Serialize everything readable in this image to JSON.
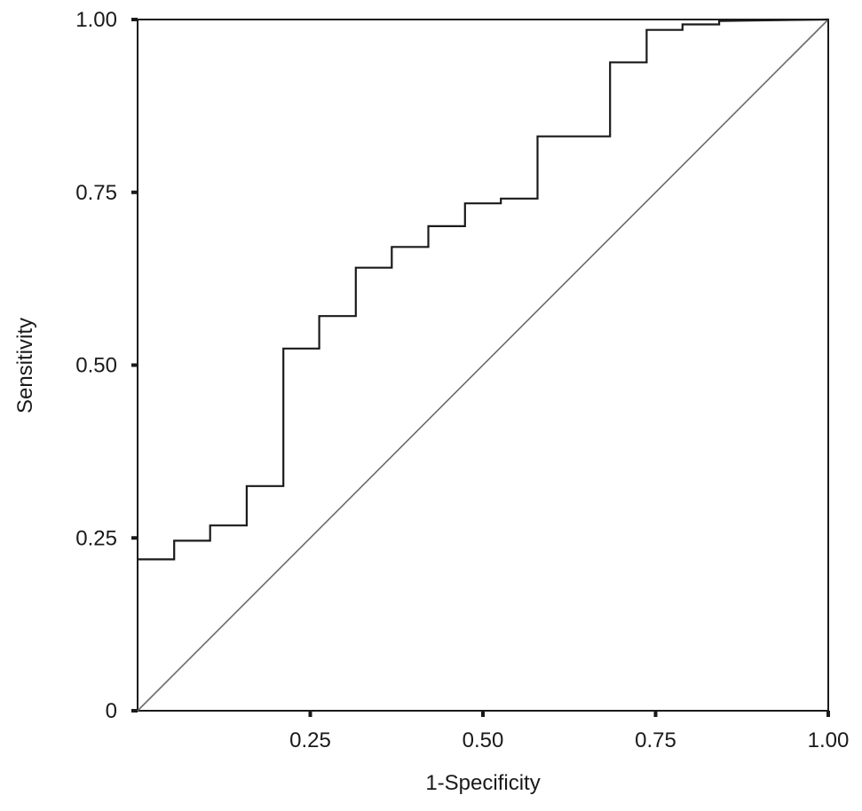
{
  "chart_data": {
    "type": "line",
    "title": "",
    "xlabel": "1-Specificity",
    "ylabel": "Sensitivity",
    "xlim": [
      0,
      1
    ],
    "ylim": [
      0,
      1
    ],
    "grid": false,
    "legend": "none",
    "x_ticks": [
      {
        "value": 0.25,
        "label": "0.25"
      },
      {
        "value": 0.5,
        "label": "0.50"
      },
      {
        "value": 0.75,
        "label": "0.75"
      },
      {
        "value": 1.0,
        "label": "1.00"
      }
    ],
    "y_ticks": [
      {
        "value": 0,
        "label": "0"
      },
      {
        "value": 0.25,
        "label": "0.25"
      },
      {
        "value": 0.5,
        "label": "0.50"
      },
      {
        "value": 0.75,
        "label": "0.75"
      },
      {
        "value": 1.0,
        "label": "1.00"
      }
    ],
    "series": [
      {
        "style": "step",
        "color": "#1a1a1a",
        "x": [
          0.0,
          0.053,
          0.053,
          0.105,
          0.105,
          0.158,
          0.158,
          0.211,
          0.211,
          0.263,
          0.263,
          0.316,
          0.316,
          0.368,
          0.368,
          0.421,
          0.421,
          0.474,
          0.474,
          0.526,
          0.526,
          0.579,
          0.579,
          0.684,
          0.684,
          0.737,
          0.737,
          0.789,
          0.789,
          0.842,
          0.842,
          1.0
        ],
        "y": [
          0.219,
          0.219,
          0.246,
          0.246,
          0.268,
          0.268,
          0.325,
          0.325,
          0.524,
          0.524,
          0.571,
          0.571,
          0.641,
          0.641,
          0.671,
          0.671,
          0.701,
          0.701,
          0.734,
          0.734,
          0.741,
          0.741,
          0.831,
          0.831,
          0.938,
          0.938,
          0.985,
          0.985,
          0.993,
          0.993,
          0.998,
          1.0
        ]
      },
      {
        "style": "reference",
        "color": "#6a6a6a",
        "x": [
          0,
          1
        ],
        "y": [
          0,
          1
        ]
      }
    ]
  }
}
